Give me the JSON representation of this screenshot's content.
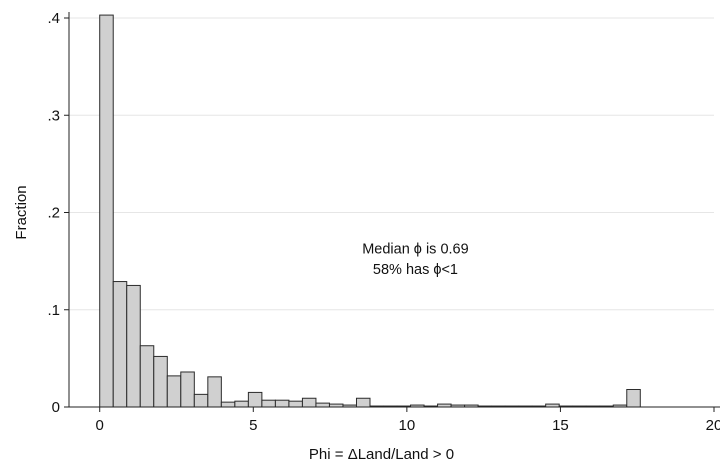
{
  "chart_data": {
    "type": "bar",
    "title": "",
    "xlabel": "Phi = ΔLand/Land > 0",
    "ylabel": "Fraction",
    "xlim": [
      -1,
      20
    ],
    "ylim": [
      0,
      0.4
    ],
    "x_ticks": [
      0,
      5,
      10,
      15,
      20
    ],
    "x_tick_labels": [
      "0",
      "5",
      "10",
      "15",
      "20"
    ],
    "y_ticks": [
      0,
      0.1,
      0.2,
      0.3,
      0.4
    ],
    "y_tick_labels": [
      "0",
      ".1",
      ".2",
      ".3",
      ".4"
    ],
    "grid": true,
    "bin_width": 0.44,
    "bins": [
      {
        "x0": 0.0,
        "value": 0.403
      },
      {
        "x0": 0.44,
        "value": 0.129
      },
      {
        "x0": 0.88,
        "value": 0.125
      },
      {
        "x0": 1.32,
        "value": 0.063
      },
      {
        "x0": 1.76,
        "value": 0.052
      },
      {
        "x0": 2.2,
        "value": 0.032
      },
      {
        "x0": 2.64,
        "value": 0.036
      },
      {
        "x0": 3.08,
        "value": 0.013
      },
      {
        "x0": 3.52,
        "value": 0.031
      },
      {
        "x0": 3.96,
        "value": 0.005
      },
      {
        "x0": 4.4,
        "value": 0.006
      },
      {
        "x0": 4.84,
        "value": 0.015
      },
      {
        "x0": 5.28,
        "value": 0.007
      },
      {
        "x0": 5.72,
        "value": 0.007
      },
      {
        "x0": 6.16,
        "value": 0.006
      },
      {
        "x0": 6.6,
        "value": 0.009
      },
      {
        "x0": 7.04,
        "value": 0.004
      },
      {
        "x0": 7.48,
        "value": 0.003
      },
      {
        "x0": 7.92,
        "value": 0.002
      },
      {
        "x0": 8.36,
        "value": 0.009
      },
      {
        "x0": 8.8,
        "value": 0.001
      },
      {
        "x0": 9.24,
        "value": 0.001
      },
      {
        "x0": 9.68,
        "value": 0.001
      },
      {
        "x0": 10.12,
        "value": 0.002
      },
      {
        "x0": 10.56,
        "value": 0.001
      },
      {
        "x0": 11.0,
        "value": 0.003
      },
      {
        "x0": 11.44,
        "value": 0.002
      },
      {
        "x0": 11.88,
        "value": 0.002
      },
      {
        "x0": 12.32,
        "value": 0.001
      },
      {
        "x0": 12.76,
        "value": 0.001
      },
      {
        "x0": 13.2,
        "value": 0.001
      },
      {
        "x0": 13.64,
        "value": 0.001
      },
      {
        "x0": 14.08,
        "value": 0.001
      },
      {
        "x0": 14.52,
        "value": 0.003
      },
      {
        "x0": 14.96,
        "value": 0.001
      },
      {
        "x0": 15.4,
        "value": 0.001
      },
      {
        "x0": 15.84,
        "value": 0.001
      },
      {
        "x0": 16.28,
        "value": 0.001
      },
      {
        "x0": 16.72,
        "value": 0.002
      },
      {
        "x0": 17.16,
        "value": 0.018
      }
    ],
    "annotation": {
      "line1": "Median ϕ is 0.69",
      "line2": "58% has ϕ<1"
    },
    "colors": {
      "bar_fill": "#d0d0d0",
      "bar_stroke": "#2b2b2b",
      "grid": "#e6e6e6",
      "axis": "#222222"
    }
  }
}
